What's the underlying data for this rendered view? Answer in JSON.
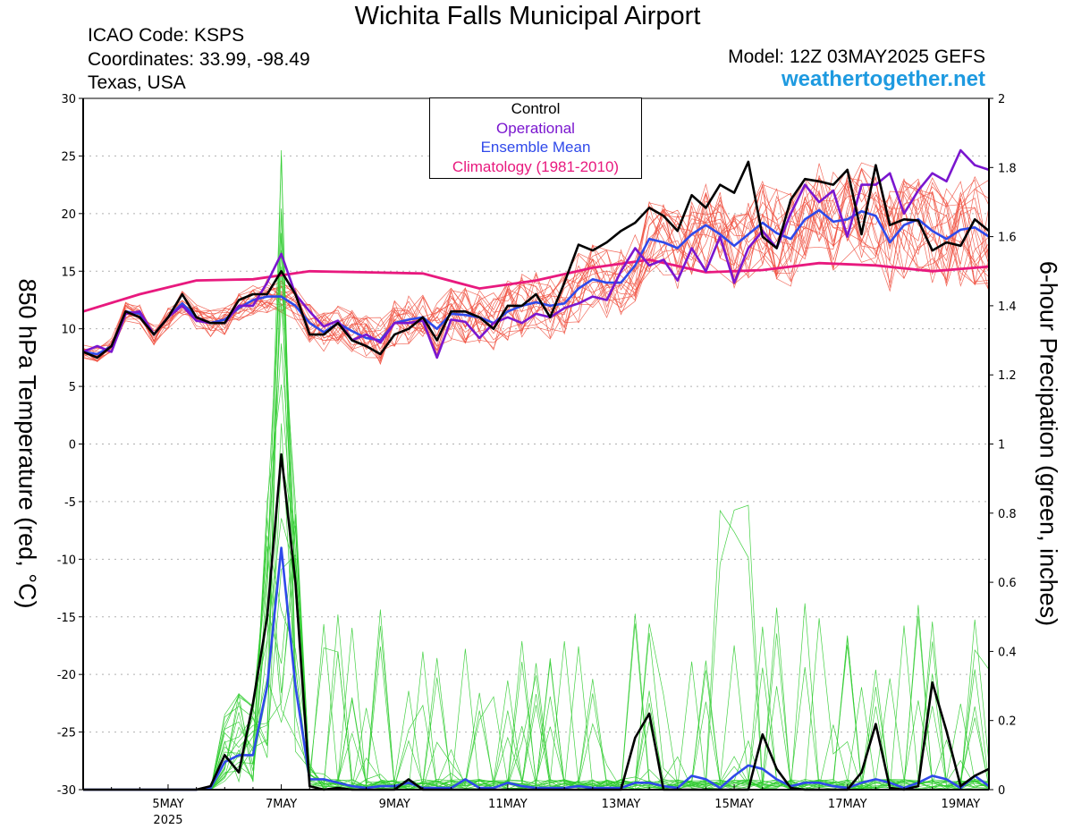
{
  "header": {
    "title": "Wichita Falls Municipal Airport",
    "icao": "ICAO Code: KSPS",
    "coordinates": "Coordinates: 33.99, -98.49",
    "region": "Texas, USA",
    "model": "Model: 12Z 03MAY2025 GEFS",
    "site": "weathertogether.net"
  },
  "legend": {
    "control": "Control",
    "operational": "Operational",
    "ensemble_mean": "Ensemble Mean",
    "climatology": "Climatology (1981-2010)"
  },
  "colors": {
    "control": "#000000",
    "operational": "#7a16cf",
    "ensemble_mean": "#2f49ea",
    "climatology": "#e8197e",
    "members_temp": "#f05040",
    "members_precip": "#30cc30",
    "site": "#1e9ae0",
    "grid": "#b0b0b0"
  },
  "chart_data": {
    "type": "line",
    "x_unit": "forecast hour from 12Z 03MAY2025",
    "x_range": [
      0,
      384
    ],
    "x_ticks": [
      {
        "hour": 36,
        "label": "5MAY",
        "sublabel": "2025"
      },
      {
        "hour": 84,
        "label": "7MAY"
      },
      {
        "hour": 132,
        "label": "9MAY"
      },
      {
        "hour": 180,
        "label": "11MAY"
      },
      {
        "hour": 228,
        "label": "13MAY"
      },
      {
        "hour": 276,
        "label": "15MAY"
      },
      {
        "hour": 324,
        "label": "17MAY"
      },
      {
        "hour": 372,
        "label": "19MAY"
      }
    ],
    "y_left": {
      "label": "850 hPa Temperature (red, °C)",
      "range": [
        -30,
        30
      ],
      "ticks": [
        30,
        25,
        20,
        15,
        10,
        5,
        0,
        -5,
        -10,
        -15,
        -20,
        -25,
        -30
      ]
    },
    "y_right": {
      "label": "6-hour Precipation (green, inches)",
      "range": [
        0,
        2
      ],
      "ticks": [
        "2",
        "1.8",
        "1.6",
        "1.4",
        "1.2",
        "1",
        "0.8",
        "0.6",
        "0.4",
        "0.2",
        "0"
      ]
    },
    "grid": "horizontal dotted",
    "temperature": {
      "hours": [
        0,
        6,
        12,
        18,
        24,
        30,
        36,
        42,
        48,
        54,
        60,
        66,
        72,
        78,
        84,
        90,
        96,
        102,
        108,
        114,
        120,
        126,
        132,
        138,
        144,
        150,
        156,
        162,
        168,
        174,
        180,
        186,
        192,
        198,
        204,
        210,
        216,
        222,
        228,
        234,
        240,
        246,
        252,
        258,
        264,
        270,
        276,
        282,
        288,
        294,
        300,
        306,
        312,
        318,
        324,
        330,
        336,
        342,
        348,
        354,
        360,
        366,
        372,
        378,
        384
      ],
      "control": [
        8,
        7.5,
        8.5,
        11.5,
        11,
        9.5,
        11,
        13,
        11,
        10.5,
        10.5,
        12.5,
        13,
        13,
        15,
        13,
        9.5,
        9.5,
        10.5,
        9,
        8.5,
        7.8,
        9.5,
        10,
        11,
        9,
        11.5,
        11.5,
        11,
        10,
        12,
        12,
        13,
        11,
        14,
        17.3,
        16.8,
        17.5,
        18.5,
        19.2,
        20.5,
        19.8,
        18.5,
        21.6,
        20.5,
        22.5,
        21.8,
        24.5,
        18,
        17,
        21.2,
        23,
        22.8,
        22.5,
        23.8,
        18.2,
        24.2,
        19,
        19.5,
        19.4,
        16.8,
        17.5,
        17.2,
        19.5,
        18.5
      ],
      "operational": [
        8,
        8.5,
        8,
        11.3,
        11.5,
        9.5,
        11,
        12,
        10.7,
        10.5,
        10.5,
        12,
        12,
        14,
        16.5,
        13,
        11.5,
        10.2,
        10.7,
        9,
        9.5,
        8.8,
        10.5,
        10.5,
        10.7,
        7.5,
        10.8,
        10.6,
        9.2,
        10.5,
        11,
        10.5,
        11.3,
        11,
        11.8,
        12.2,
        12.8,
        12.5,
        15,
        17,
        15.5,
        16,
        14.2,
        17,
        15,
        18,
        14,
        17,
        18.5,
        17,
        20,
        22.5,
        21,
        22,
        18,
        22.5,
        22.5,
        23.5,
        20,
        22,
        23.5,
        22.8,
        25.5,
        24.2,
        23.8
      ],
      "ensemble_mean": [
        8,
        7.8,
        8.5,
        11.5,
        11.3,
        9.5,
        11,
        12.2,
        11,
        10.5,
        10.8,
        11.8,
        12.5,
        12.8,
        12.8,
        12,
        10.5,
        9.7,
        10.5,
        9.8,
        9.2,
        9,
        10.5,
        10.8,
        11,
        10,
        11.3,
        11.2,
        11,
        10.5,
        11.5,
        12,
        12.3,
        12,
        12.2,
        13.5,
        14.3,
        14,
        14,
        15.5,
        17.8,
        17.5,
        17,
        18.2,
        19,
        18.2,
        17.2,
        18.2,
        19.2,
        18.3,
        17.8,
        19.5,
        20.3,
        19.3,
        19.5,
        20.2,
        19.8,
        17.5,
        19,
        19.5,
        18.5,
        17.8,
        18.6,
        18.8,
        18
      ],
      "climatology": [
        [
          0,
          11.5
        ],
        [
          24,
          13
        ],
        [
          48,
          14.2
        ],
        [
          72,
          14.3
        ],
        [
          96,
          15
        ],
        [
          120,
          14.9
        ],
        [
          144,
          14.8
        ],
        [
          168,
          13.5
        ],
        [
          192,
          14.2
        ],
        [
          216,
          15.3
        ],
        [
          240,
          16
        ],
        [
          264,
          14.9
        ],
        [
          288,
          15.1
        ],
        [
          312,
          15.7
        ],
        [
          336,
          15.5
        ],
        [
          360,
          15
        ],
        [
          384,
          15.4
        ]
      ]
    },
    "precipitation": {
      "hours": [
        0,
        6,
        12,
        18,
        24,
        30,
        36,
        42,
        48,
        54,
        60,
        66,
        72,
        78,
        84,
        90,
        96,
        102,
        108,
        114,
        120,
        126,
        132,
        138,
        144,
        150,
        156,
        162,
        168,
        174,
        180,
        186,
        192,
        198,
        204,
        210,
        216,
        222,
        228,
        234,
        240,
        246,
        252,
        258,
        264,
        270,
        276,
        282,
        288,
        294,
        300,
        306,
        312,
        318,
        324,
        330,
        336,
        342,
        348,
        354,
        360,
        366,
        372,
        378,
        384
      ],
      "control": [
        0,
        0,
        0,
        0,
        0,
        0,
        0,
        0,
        0,
        0.01,
        0.1,
        0.05,
        0.25,
        0.5,
        0.97,
        0.6,
        0.01,
        0,
        0.005,
        0,
        0,
        0,
        0,
        0.03,
        0,
        0,
        0,
        0,
        0,
        0,
        0,
        0,
        0,
        0,
        0,
        0,
        0,
        0,
        0,
        0.15,
        0.22,
        0,
        0,
        0,
        0,
        0,
        0,
        0,
        0.16,
        0.06,
        0.005,
        0,
        0,
        0,
        0,
        0.05,
        0.19,
        0.005,
        0,
        0.01,
        0.31,
        0.17,
        0.01,
        0.04,
        0.06
      ],
      "ensemble_mean": [
        0,
        0,
        0,
        0,
        0,
        0,
        0,
        0,
        0,
        0.005,
        0.08,
        0.1,
        0.1,
        0.3,
        0.7,
        0.3,
        0.03,
        0.03,
        0.02,
        0.01,
        0.005,
        0.01,
        0.01,
        0.02,
        0.005,
        0.005,
        0.005,
        0.03,
        0.005,
        0.005,
        0.02,
        0.01,
        0.005,
        0.005,
        0.005,
        0.01,
        0.005,
        0.005,
        0.005,
        0.02,
        0.02,
        0.01,
        0.005,
        0.04,
        0.03,
        0.005,
        0.04,
        0.07,
        0.06,
        0.03,
        0.01,
        0.02,
        0.02,
        0.01,
        0.005,
        0.02,
        0.03,
        0.02,
        0.005,
        0.02,
        0.04,
        0.03,
        0.005,
        0.04,
        0.01
      ],
      "member_peaks": "up to ~1.8 in on 6-7 MAY; isolated 0.2-0.9 in events 10-20 MAY"
    }
  }
}
